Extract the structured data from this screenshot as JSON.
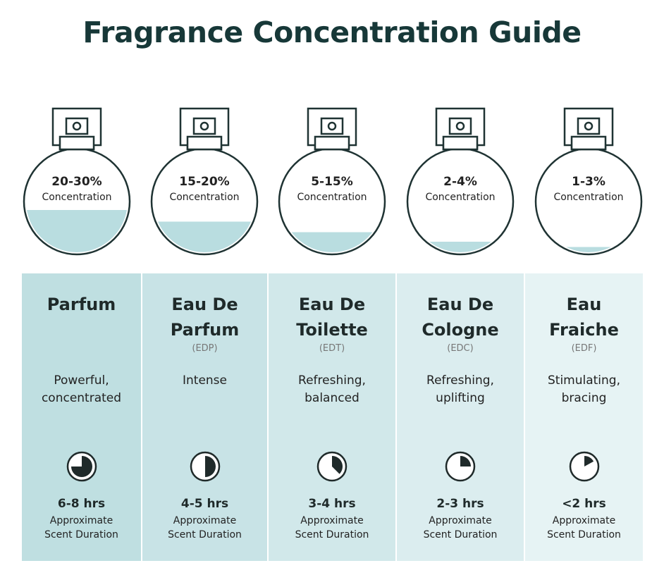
{
  "title": "Fragrance Concentration Guide",
  "colors": {
    "title": "#173838",
    "liquid": "#b9dde0",
    "outline": "#1f3333",
    "column_backgrounds": [
      "#bfdfe1",
      "#c8e3e6",
      "#d1e8ea",
      "#dbedef",
      "#e6f3f4"
    ]
  },
  "types": [
    {
      "concentration": "20-30%",
      "concentration_label": "Concentration",
      "fill_level": 0.42,
      "name_line1": "Parfum",
      "name_line2": "",
      "abbr": "",
      "desc_line1": "Powerful,",
      "desc_line2": "concentrated",
      "duration": "6-8 hrs",
      "duration_label_line1": "Approximate",
      "duration_label_line2": "Scent Duration",
      "clock_fraction": 0.75,
      "clock_icon": "clock-icon"
    },
    {
      "concentration": "15-20%",
      "concentration_label": "Concentration",
      "fill_level": 0.31,
      "name_line1": "Eau De",
      "name_line2": "Parfum",
      "abbr": "(EDP)",
      "desc_line1": "Intense",
      "desc_line2": "",
      "duration": "4-5 hrs",
      "duration_label_line1": "Approximate",
      "duration_label_line2": "Scent Duration",
      "clock_fraction": 0.5,
      "clock_icon": "clock-icon"
    },
    {
      "concentration": "5-15%",
      "concentration_label": "Concentration",
      "fill_level": 0.21,
      "name_line1": "Eau De",
      "name_line2": "Toilette",
      "abbr": "(EDT)",
      "desc_line1": "Refreshing,",
      "desc_line2": "balanced",
      "duration": "3-4 hrs",
      "duration_label_line1": "Approximate",
      "duration_label_line2": "Scent Duration",
      "clock_fraction": 0.375,
      "clock_icon": "clock-icon"
    },
    {
      "concentration": "2-4%",
      "concentration_label": "Concentration",
      "fill_level": 0.12,
      "name_line1": "Eau De",
      "name_line2": "Cologne",
      "abbr": "(EDC)",
      "desc_line1": "Refreshing,",
      "desc_line2": "uplifting",
      "duration": "2-3 hrs",
      "duration_label_line1": "Approximate",
      "duration_label_line2": "Scent Duration",
      "clock_fraction": 0.25,
      "clock_icon": "clock-icon"
    },
    {
      "concentration": "1-3%",
      "concentration_label": "Concentration",
      "fill_level": 0.07,
      "name_line1": "Eau",
      "name_line2": "Fraiche",
      "abbr": "(EDF)",
      "desc_line1": "Stimulating,",
      "desc_line2": "bracing",
      "duration": "<2 hrs",
      "duration_label_line1": "Approximate",
      "duration_label_line2": "Scent Duration",
      "clock_fraction": 0.17,
      "clock_icon": "clock-icon"
    }
  ]
}
